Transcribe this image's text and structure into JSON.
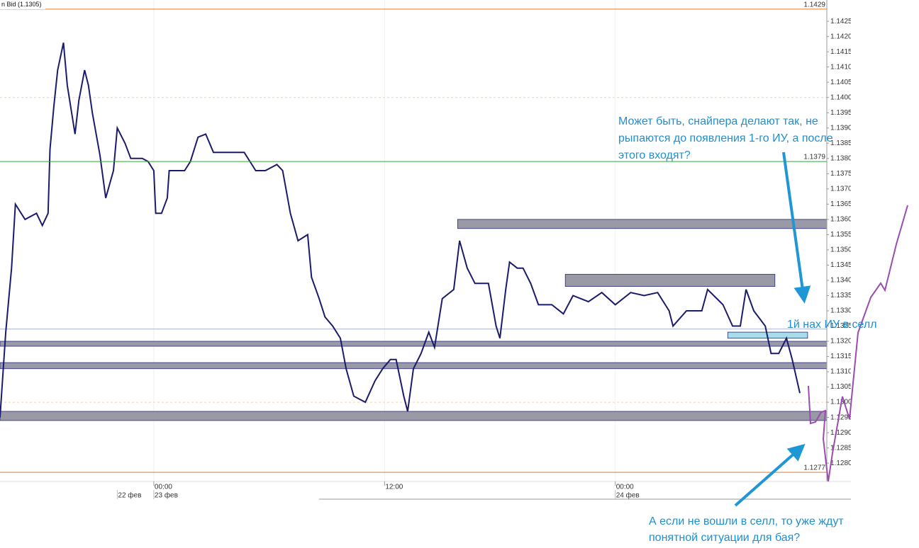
{
  "chart_data": {
    "type": "line",
    "title": "n Bid (1.1305)",
    "x": [
      -8.0,
      -7.7,
      -7.4,
      -7.2,
      -6.7,
      -6.1,
      -5.8,
      -5.5,
      -5.4,
      -5.2,
      -5.0,
      -4.7,
      -4.5,
      -4.1,
      -3.9,
      -3.6,
      -3.4,
      -3.2,
      -2.8,
      -2.5,
      -2.1,
      -1.9,
      -1.5,
      -1.2,
      -0.6,
      -0.3,
      0,
      0.1,
      0.4,
      0.7,
      0.8,
      1.2,
      1.6,
      1.9,
      2.3,
      2.7,
      3.1,
      3.4,
      4.2,
      4.7,
      5.3,
      5.8,
      6.4,
      6.7,
      7.1,
      7.5,
      8.0,
      8.2,
      8.6,
      8.9,
      9.3,
      9.7,
      10.0,
      10.4,
      11.0,
      11.5,
      11.9,
      12.3,
      12.6,
      13.0,
      13.2,
      13.5,
      13.9,
      14.3,
      14.6,
      15.0,
      15.6,
      15.9,
      16.3,
      16.7,
      17.0,
      17.4,
      17.8,
      18.0,
      18.3,
      18.5,
      18.9,
      19.2,
      19.6,
      20.0,
      20.7,
      21.3,
      21.8,
      22.6,
      23.3,
      24.0,
      24.8,
      25.5,
      26.2,
      26.8,
      27.0,
      27.7,
      28.5,
      28.8,
      29.6,
      30.1,
      30.5,
      30.8,
      31.2,
      31.8,
      32.1,
      32.5,
      32.9,
      33.2,
      33.6
    ],
    "series": [
      {
        "name": "Bid",
        "color": "#1b1b6b",
        "values": [
          1.1295,
          1.1323,
          1.1344,
          1.1365,
          1.136,
          1.1362,
          1.1358,
          1.1362,
          1.1383,
          1.1397,
          1.1409,
          1.1418,
          1.1404,
          1.1388,
          1.1399,
          1.1409,
          1.1404,
          1.1395,
          1.1381,
          1.1367,
          1.1376,
          1.139,
          1.1385,
          1.138,
          1.138,
          1.1379,
          1.1376,
          1.1362,
          1.1362,
          1.1367,
          1.1376,
          1.1376,
          1.1376,
          1.1379,
          1.1387,
          1.1388,
          1.1382,
          1.1382,
          1.1382,
          1.1382,
          1.1376,
          1.1376,
          1.1378,
          1.1376,
          1.1362,
          1.1353,
          1.1355,
          1.1341,
          1.1334,
          1.1328,
          1.1325,
          1.1321,
          1.1311,
          1.1302,
          1.13,
          1.1307,
          1.1311,
          1.1314,
          1.1314,
          1.1302,
          1.1297,
          1.1311,
          1.1316,
          1.1323,
          1.1318,
          1.1334,
          1.1337,
          1.1353,
          1.1344,
          1.1339,
          1.1339,
          1.1339,
          1.1325,
          1.1321,
          1.1337,
          1.1346,
          1.1344,
          1.1344,
          1.1339,
          1.1332,
          1.1332,
          1.1329,
          1.1335,
          1.1333,
          1.1336,
          1.1332,
          1.1336,
          1.1335,
          1.1336,
          1.133,
          1.1325,
          1.133,
          1.133,
          1.1337,
          1.1332,
          1.1325,
          1.1325,
          1.1337,
          1.133,
          1.1325,
          1.1316,
          1.1316,
          1.1321,
          1.1314,
          1.1303
        ]
      }
    ],
    "xlim": [
      -8,
      35
    ],
    "ylim": [
      1.1274,
      1.1432
    ],
    "xticks": [
      {
        "value": 0,
        "label": "00:00"
      },
      {
        "value": 12,
        "label": "12:00"
      },
      {
        "value": 24,
        "label": "00:00"
      }
    ],
    "date_labels": [
      {
        "value": -1.9,
        "label": "22 фев"
      },
      {
        "value": 0,
        "label": "23 фев"
      },
      {
        "value": 24,
        "label": "24 фев"
      }
    ],
    "yticks": [
      {
        "value": 1.128,
        "label": "1.1280"
      },
      1.1285,
      {
        "value": 1.129,
        "label": "1.1290"
      },
      1.1295,
      {
        "value": 1.13,
        "label": "1.1300"
      },
      1.1305,
      {
        "value": 1.131,
        "label": "1.1310"
      },
      1.1315,
      {
        "value": 1.132,
        "label": "1.1320"
      },
      1.1325,
      {
        "value": 1.133,
        "label": "1.1330"
      },
      1.1335,
      {
        "value": 1.134,
        "label": "1.1340"
      },
      1.1345,
      {
        "value": 1.135,
        "label": "1.1350"
      },
      1.1355,
      {
        "value": 1.136,
        "label": "1.1360"
      },
      1.1365,
      {
        "value": 1.137,
        "label": "1.1370"
      },
      1.1375,
      {
        "value": 1.138,
        "label": "1.1380"
      },
      1.1385,
      {
        "value": 1.139,
        "label": "1.1390"
      },
      1.1395,
      {
        "value": 1.14,
        "label": "1.1400"
      },
      1.1405,
      {
        "value": 1.141,
        "label": "1.1410"
      },
      1.1415,
      {
        "value": 1.142,
        "label": "1.1420"
      },
      1.1425
    ],
    "levels": [
      {
        "value": 1.1429,
        "color": "#e07a2e"
      },
      {
        "value": 1.1379,
        "color": "#3aa33a"
      },
      {
        "value": 1.1277,
        "color": "#e07a2e"
      }
    ],
    "ref_lines": [
      {
        "value": 1.14,
        "color": "#e8d8b0",
        "dashed": true
      },
      {
        "value": 1.13,
        "color": "#e8d8b0",
        "dashed": true
      },
      {
        "value": 1.1324,
        "color": "#a8b4cc",
        "dashed": false
      }
    ],
    "zones": [
      {
        "x": [
          15.8,
          35
        ],
        "y": [
          1.1357,
          1.136
        ],
        "color": "#9a9aa6"
      },
      {
        "x": [
          21.4,
          32.3
        ],
        "y": [
          1.1338,
          1.1342
        ],
        "color": "#9a9aa6"
      },
      {
        "x": [
          -8,
          35
        ],
        "y": [
          1.1319,
          1.132
        ],
        "color": "#9a9aa6"
      },
      {
        "x": [
          -8,
          35
        ],
        "y": [
          1.1311,
          1.1313
        ],
        "color": "#9a9aa6"
      },
      {
        "x": [
          -8,
          35
        ],
        "y": [
          1.1294,
          1.1297
        ],
        "color": "#9a9aa6"
      },
      {
        "x": [
          29.85,
          34.0
        ],
        "y": [
          1.1321,
          1.1323
        ],
        "color": "#a8dcec"
      }
    ],
    "annotations": [
      {
        "lines": [
          "Может быть, снайпера делают так, не",
          "рыпаются до появления 1-го ИУ, а после",
          "этого входят?"
        ]
      },
      {
        "lines": [
          "1й нах ИУ в селл"
        ]
      },
      {
        "lines": [
          "А если не вошли в селл, то уже ждут",
          "понятной ситуации для бая?"
        ]
      }
    ]
  }
}
